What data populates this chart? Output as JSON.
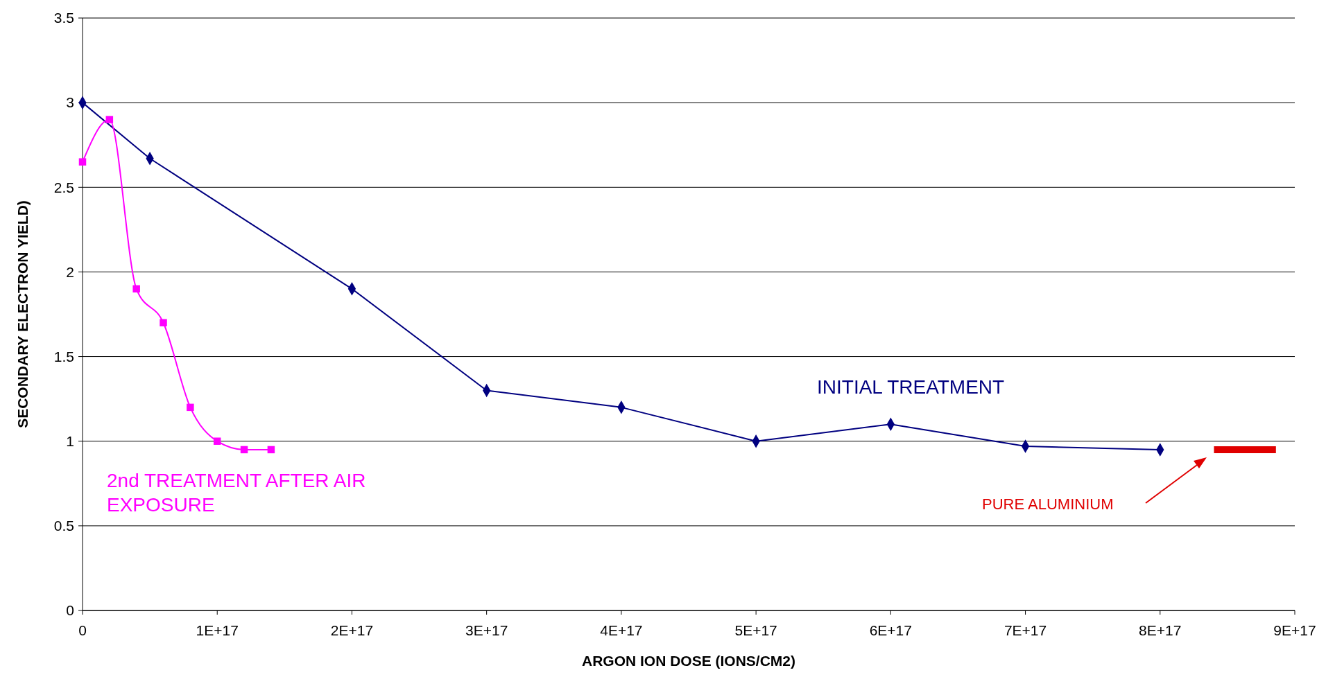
{
  "chart_data": {
    "type": "line",
    "xlabel": "ARGON ION DOSE (IONS/CM2)",
    "ylabel": "SECONDARY ELECTRON YIELD)",
    "xlim": [
      0,
      9e+17
    ],
    "xticks": [
      0,
      {
        "value": 1e+17,
        "label": "1E+17"
      },
      {
        "value": 2e+17,
        "label": "2E+17"
      },
      {
        "value": 3e+17,
        "label": "3E+17"
      },
      {
        "value": 4e+17,
        "label": "4E+17"
      },
      {
        "value": 5e+17,
        "label": "5E+17"
      },
      {
        "value": 6e+17,
        "label": "6E+17"
      },
      {
        "value": 7e+17,
        "label": "7E+17"
      },
      {
        "value": 8e+17,
        "label": "8E+17"
      },
      {
        "value": 9e+17,
        "label": "9E+17"
      }
    ],
    "ylim": [
      0,
      3.5
    ],
    "yticks": [
      0,
      0.5,
      1,
      1.5,
      2,
      2.5,
      3,
      3.5
    ],
    "grid": "y",
    "legend": false,
    "series": [
      {
        "name": "INITIAL TREATMENT",
        "color": "#000080",
        "marker": "diamond",
        "x": [
          0,
          5e+16,
          2e+17,
          3e+17,
          4e+17,
          5e+17,
          6e+17,
          7e+17,
          8e+17
        ],
        "values": [
          3.0,
          2.67,
          1.9,
          1.3,
          1.2,
          1.0,
          1.1,
          0.97,
          0.95
        ]
      },
      {
        "name": "2nd TREATMENT AFTER AIR EXPOSURE",
        "color": "#ff00ff",
        "marker": "square",
        "x": [
          0,
          2e+16,
          4e+16,
          6e+16,
          8e+16,
          1e+17,
          1.2e+17,
          1.4e+17
        ],
        "values": [
          2.65,
          2.9,
          1.9,
          1.7,
          1.2,
          1.0,
          0.95,
          0.95
        ]
      },
      {
        "name": "PURE ALUMINIUM",
        "color": "#e00000",
        "marker": "none",
        "x": [
          8.4e+17,
          8.86e+17
        ],
        "values": [
          0.95,
          0.95
        ]
      }
    ]
  }
}
